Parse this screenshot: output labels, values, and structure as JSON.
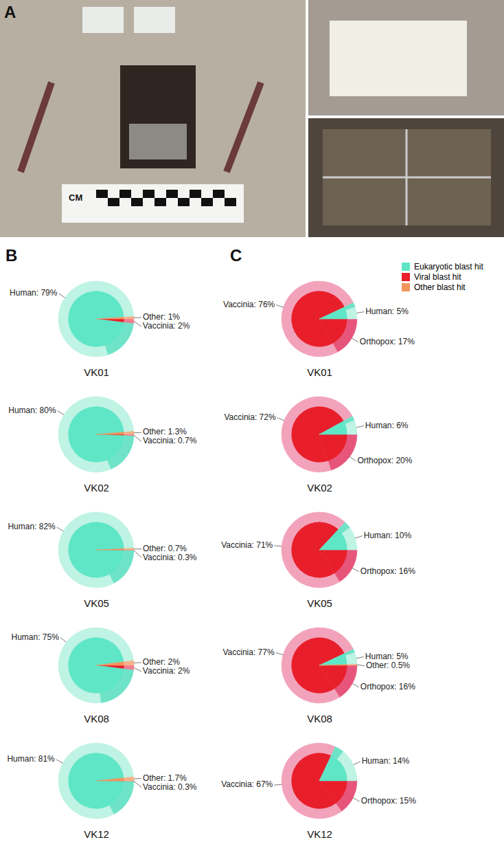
{
  "panel_labels": [
    "A",
    "B",
    "C"
  ],
  "scale_bar_label": "CM",
  "legend_items": [
    {
      "name": "Eukaryotic blast hit",
      "color": "#5ee6c6"
    },
    {
      "name": "Viral blast hit",
      "color": "#e81f2b"
    },
    {
      "name": "Other blast hit",
      "color": "#f2945e"
    }
  ],
  "chart_data": [
    {
      "type": "pie",
      "panel": "B",
      "title": "VK01",
      "data_labels": true,
      "values": [
        2,
        18,
        79,
        1
      ],
      "value_labels": [
        "Vaccinia: 2%",
        null,
        "Human: 79%",
        "Other: 1%"
      ],
      "groups": [
        "Viral blast hit",
        "Eukaryotic blast hit",
        "Eukaryotic blast hit",
        "Other blast hit"
      ],
      "colors": [
        "#f07e90",
        "#6fe3c8",
        "#bff3e4",
        "#f5b088"
      ]
    },
    {
      "type": "pie",
      "panel": "B",
      "title": "VK02",
      "data_labels": true,
      "values": [
        0.7,
        18,
        80,
        1.3
      ],
      "value_labels": [
        "Vaccinia: 0.7%",
        null,
        "Human: 80%",
        "Other: 1.3%"
      ],
      "groups": [
        "Viral blast hit",
        "Eukaryotic blast hit",
        "Eukaryotic blast hit",
        "Other blast hit"
      ],
      "colors": [
        "#f07e90",
        "#6fe3c8",
        "#bff3e4",
        "#f5b088"
      ]
    },
    {
      "type": "pie",
      "panel": "B",
      "title": "VK05",
      "data_labels": true,
      "values": [
        0.3,
        17,
        82,
        0.7
      ],
      "value_labels": [
        "Vaccinia: 0.3%",
        null,
        "Human: 82%",
        "Other: 0.7%"
      ],
      "groups": [
        "Viral blast hit",
        "Eukaryotic blast hit",
        "Eukaryotic blast hit",
        "Other blast hit"
      ],
      "colors": [
        "#f07e90",
        "#6fe3c8",
        "#bff3e4",
        "#f5b088"
      ]
    },
    {
      "type": "pie",
      "panel": "B",
      "title": "VK08",
      "data_labels": true,
      "values": [
        2,
        21,
        75,
        2
      ],
      "value_labels": [
        "Vaccinia: 2%",
        null,
        "Human: 75%",
        "Other: 2%"
      ],
      "groups": [
        "Viral blast hit",
        "Eukaryotic blast hit",
        "Eukaryotic blast hit",
        "Other blast hit"
      ],
      "colors": [
        "#f07e90",
        "#6fe3c8",
        "#bff3e4",
        "#f5b088"
      ]
    },
    {
      "type": "pie",
      "panel": "B",
      "title": "VK12",
      "data_labels": true,
      "values": [
        0.3,
        17,
        81,
        1.7
      ],
      "value_labels": [
        "Vaccinia: 0.3%",
        null,
        "Human: 81%",
        "Other: 1.7%"
      ],
      "groups": [
        "Viral blast hit",
        "Eukaryotic blast hit",
        "Eukaryotic blast hit",
        "Other blast hit"
      ],
      "colors": [
        "#f07e90",
        "#6fe3c8",
        "#bff3e4",
        "#f5b088"
      ]
    },
    {
      "type": "pie",
      "panel": "C",
      "title": "VK01",
      "data_labels": true,
      "values": [
        17,
        76,
        2,
        5
      ],
      "value_labels": [
        "Orthopox: 17%",
        "Vaccinia: 76%",
        null,
        "Human: 5%"
      ],
      "groups": [
        "Viral blast hit",
        "Viral blast hit",
        "Eukaryotic blast hit",
        "Eukaryotic blast hit"
      ],
      "colors": [
        "#e7557b",
        "#f2a3bb",
        "#6fe3c8",
        "#bff3e4"
      ]
    },
    {
      "type": "pie",
      "panel": "C",
      "title": "VK02",
      "data_labels": true,
      "values": [
        20,
        72,
        2,
        6
      ],
      "value_labels": [
        "Orthopox: 20%",
        "Vaccinia: 72%",
        null,
        "Human: 6%"
      ],
      "groups": [
        "Viral blast hit",
        "Viral blast hit",
        "Eukaryotic blast hit",
        "Eukaryotic blast hit"
      ],
      "colors": [
        "#e7557b",
        "#f2a3bb",
        "#6fe3c8",
        "#bff3e4"
      ]
    },
    {
      "type": "pie",
      "panel": "C",
      "title": "VK05",
      "data_labels": true,
      "values": [
        16,
        71,
        3,
        10
      ],
      "value_labels": [
        "Orthopox: 16%",
        "Vaccinia: 71%",
        null,
        "Human: 10%"
      ],
      "groups": [
        "Viral blast hit",
        "Viral blast hit",
        "Eukaryotic blast hit",
        "Eukaryotic blast hit"
      ],
      "colors": [
        "#e7557b",
        "#f2a3bb",
        "#6fe3c8",
        "#bff3e4"
      ]
    },
    {
      "type": "pie",
      "panel": "C",
      "title": "VK08",
      "data_labels": true,
      "values": [
        16,
        77,
        1.5,
        5,
        0.5
      ],
      "value_labels": [
        "Orthopox: 16%",
        "Vaccinia: 77%",
        null,
        "Human: 5%",
        "Other: 0.5%"
      ],
      "groups": [
        "Viral blast hit",
        "Viral blast hit",
        "Eukaryotic blast hit",
        "Eukaryotic blast hit",
        "Other blast hit"
      ],
      "colors": [
        "#e7557b",
        "#f2a3bb",
        "#6fe3c8",
        "#bff3e4",
        "#f5b088"
      ]
    },
    {
      "type": "pie",
      "panel": "C",
      "title": "VK12",
      "data_labels": true,
      "values": [
        15,
        67,
        4,
        14
      ],
      "value_labels": [
        "Orthopox: 15%",
        "Vaccinia: 67%",
        null,
        "Human: 14%"
      ],
      "groups": [
        "Viral blast hit",
        "Viral blast hit",
        "Eukaryotic blast hit",
        "Eukaryotic blast hit"
      ],
      "colors": [
        "#e7557b",
        "#f2a3bb",
        "#6fe3c8",
        "#bff3e4"
      ]
    }
  ]
}
